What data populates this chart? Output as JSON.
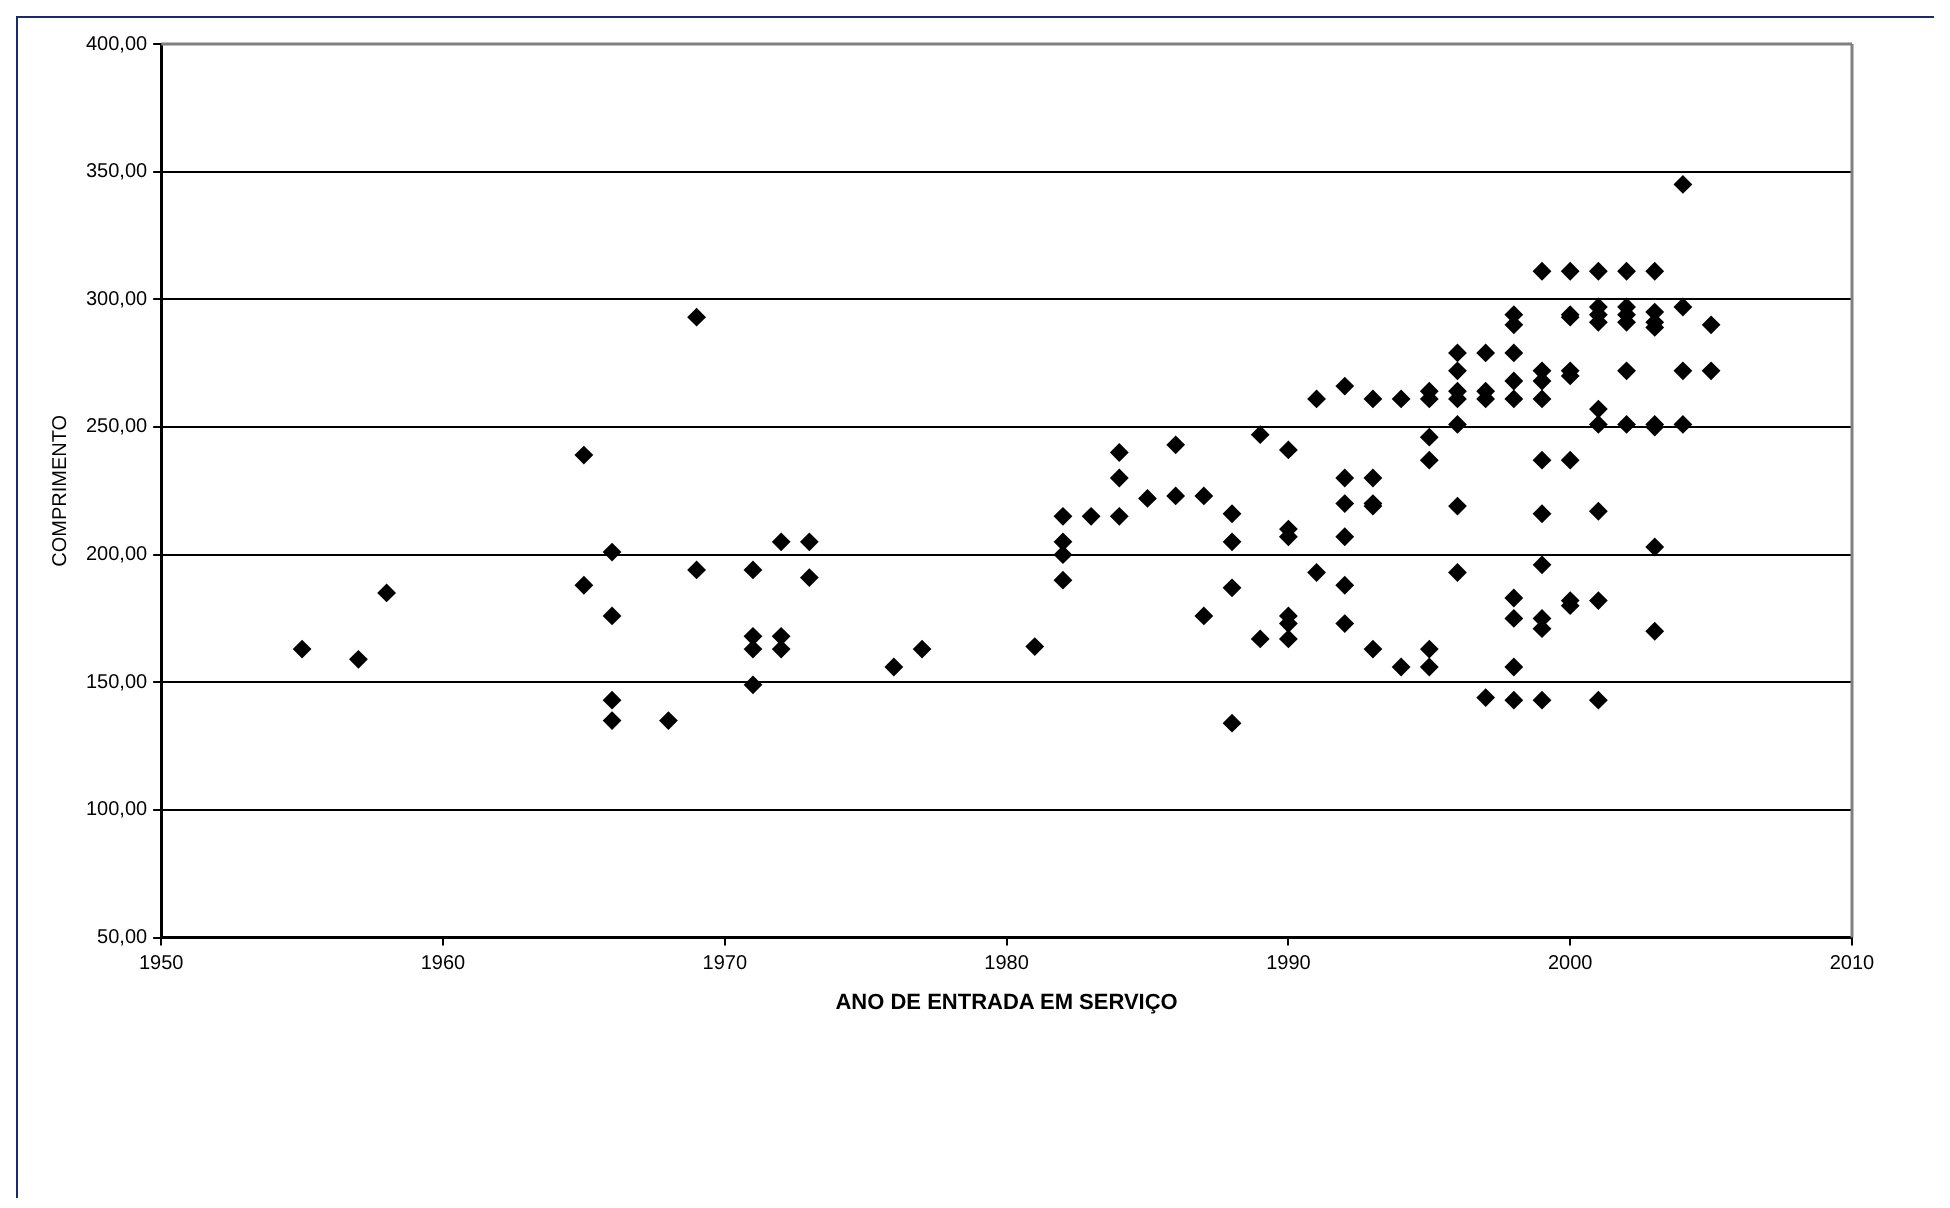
{
  "chart_data": {
    "type": "scatter",
    "xlabel": "ANO DE ENTRADA EM SERVIÇO",
    "ylabel": "COMPRIMENTO",
    "x": [
      1955,
      1957,
      1958,
      1965,
      1965,
      1966,
      1966,
      1966,
      1966,
      1968,
      1969,
      1969,
      1971,
      1971,
      1971,
      1971,
      1972,
      1972,
      1972,
      1973,
      1973,
      1976,
      1977,
      1981,
      1982,
      1982,
      1982,
      1982,
      1983,
      1984,
      1984,
      1984,
      1985,
      1986,
      1986,
      1987,
      1987,
      1988,
      1988,
      1988,
      1988,
      1989,
      1989,
      1990,
      1990,
      1990,
      1990,
      1990,
      1990,
      1991,
      1991,
      1992,
      1992,
      1992,
      1992,
      1992,
      1992,
      1993,
      1993,
      1993,
      1993,
      1993,
      1994,
      1994,
      1995,
      1995,
      1995,
      1995,
      1995,
      1995,
      1996,
      1996,
      1996,
      1996,
      1996,
      1996,
      1996,
      1997,
      1997,
      1997,
      1997,
      1998,
      1998,
      1998,
      1998,
      1998,
      1998,
      1998,
      1998,
      1998,
      1999,
      1999,
      1999,
      1999,
      1999,
      1999,
      1999,
      1999,
      1999,
      1999,
      2000,
      2000,
      2000,
      2000,
      2000,
      2000,
      2000,
      2000,
      2001,
      2001,
      2001,
      2001,
      2001,
      2001,
      2001,
      2001,
      2001,
      2002,
      2002,
      2002,
      2002,
      2002,
      2002,
      2003,
      2003,
      2003,
      2003,
      2003,
      2003,
      2003,
      2003,
      2004,
      2004,
      2004,
      2004,
      2005,
      2005
    ],
    "values": [
      163,
      159,
      185,
      239,
      188,
      201,
      176,
      143,
      135,
      135,
      293,
      194,
      194,
      168,
      163,
      149,
      205,
      168,
      163,
      205,
      191,
      156,
      163,
      164,
      215,
      205,
      200,
      190,
      215,
      240,
      230,
      215,
      222,
      243,
      223,
      223,
      176,
      216,
      205,
      187,
      134,
      247,
      167,
      241,
      210,
      207,
      176,
      173,
      167,
      261,
      193,
      266,
      230,
      220,
      207,
      188,
      173,
      261,
      230,
      220,
      219,
      163,
      261,
      156,
      264,
      261,
      246,
      237,
      163,
      156,
      279,
      272,
      264,
      261,
      251,
      219,
      193,
      279,
      264,
      261,
      144,
      294,
      290,
      279,
      268,
      261,
      183,
      175,
      156,
      143,
      311,
      272,
      268,
      261,
      237,
      216,
      196,
      175,
      171,
      143,
      311,
      294,
      293,
      272,
      270,
      237,
      182,
      180,
      311,
      297,
      294,
      291,
      257,
      251,
      217,
      182,
      143,
      311,
      297,
      294,
      291,
      272,
      251,
      311,
      295,
      291,
      289,
      251,
      250,
      203,
      170,
      345,
      297,
      272,
      251,
      290,
      272
    ],
    "color": "#000000",
    "marker": "diamond",
    "grid": "y",
    "legend": false,
    "xlim": [
      1950,
      2010
    ],
    "xticks": [
      1950,
      1960,
      1970,
      1980,
      1990,
      2000,
      2010
    ],
    "ylim": [
      50,
      400
    ],
    "yticks": [
      {
        "value": 50,
        "label": "50,00"
      },
      {
        "value": 100,
        "label": "100,00"
      },
      {
        "value": 150,
        "label": "150,00"
      },
      {
        "value": 200,
        "label": "200,00"
      },
      {
        "value": 250,
        "label": "250,00"
      },
      {
        "value": 300,
        "label": "300,00"
      },
      {
        "value": 350,
        "label": "350,00"
      },
      {
        "value": 400,
        "label": "400,00"
      }
    ]
  }
}
